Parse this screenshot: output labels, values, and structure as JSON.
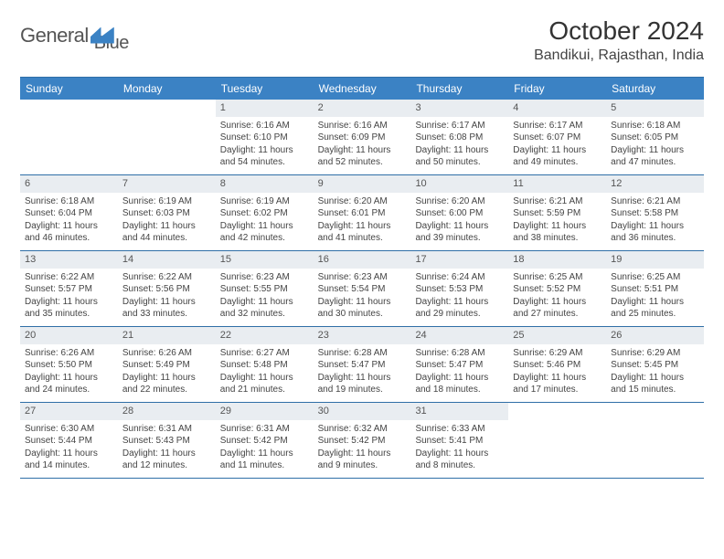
{
  "brand": {
    "word1": "General",
    "word2": "Blue"
  },
  "title": "October 2024",
  "location": "Bandikui, Rajasthan, India",
  "colors": {
    "header_bg": "#3b82c4",
    "header_text": "#ffffff",
    "daynum_bg": "#e9edf1",
    "border": "#2f6fa7",
    "page_bg": "#ffffff",
    "text": "#444444"
  },
  "layout": {
    "columns": 7,
    "rows": 5,
    "first_day_column_index": 2
  },
  "day_headers": [
    "Sunday",
    "Monday",
    "Tuesday",
    "Wednesday",
    "Thursday",
    "Friday",
    "Saturday"
  ],
  "days": [
    {
      "n": "1",
      "sunrise": "6:16 AM",
      "sunset": "6:10 PM",
      "daylight": "11 hours and 54 minutes."
    },
    {
      "n": "2",
      "sunrise": "6:16 AM",
      "sunset": "6:09 PM",
      "daylight": "11 hours and 52 minutes."
    },
    {
      "n": "3",
      "sunrise": "6:17 AM",
      "sunset": "6:08 PM",
      "daylight": "11 hours and 50 minutes."
    },
    {
      "n": "4",
      "sunrise": "6:17 AM",
      "sunset": "6:07 PM",
      "daylight": "11 hours and 49 minutes."
    },
    {
      "n": "5",
      "sunrise": "6:18 AM",
      "sunset": "6:05 PM",
      "daylight": "11 hours and 47 minutes."
    },
    {
      "n": "6",
      "sunrise": "6:18 AM",
      "sunset": "6:04 PM",
      "daylight": "11 hours and 46 minutes."
    },
    {
      "n": "7",
      "sunrise": "6:19 AM",
      "sunset": "6:03 PM",
      "daylight": "11 hours and 44 minutes."
    },
    {
      "n": "8",
      "sunrise": "6:19 AM",
      "sunset": "6:02 PM",
      "daylight": "11 hours and 42 minutes."
    },
    {
      "n": "9",
      "sunrise": "6:20 AM",
      "sunset": "6:01 PM",
      "daylight": "11 hours and 41 minutes."
    },
    {
      "n": "10",
      "sunrise": "6:20 AM",
      "sunset": "6:00 PM",
      "daylight": "11 hours and 39 minutes."
    },
    {
      "n": "11",
      "sunrise": "6:21 AM",
      "sunset": "5:59 PM",
      "daylight": "11 hours and 38 minutes."
    },
    {
      "n": "12",
      "sunrise": "6:21 AM",
      "sunset": "5:58 PM",
      "daylight": "11 hours and 36 minutes."
    },
    {
      "n": "13",
      "sunrise": "6:22 AM",
      "sunset": "5:57 PM",
      "daylight": "11 hours and 35 minutes."
    },
    {
      "n": "14",
      "sunrise": "6:22 AM",
      "sunset": "5:56 PM",
      "daylight": "11 hours and 33 minutes."
    },
    {
      "n": "15",
      "sunrise": "6:23 AM",
      "sunset": "5:55 PM",
      "daylight": "11 hours and 32 minutes."
    },
    {
      "n": "16",
      "sunrise": "6:23 AM",
      "sunset": "5:54 PM",
      "daylight": "11 hours and 30 minutes."
    },
    {
      "n": "17",
      "sunrise": "6:24 AM",
      "sunset": "5:53 PM",
      "daylight": "11 hours and 29 minutes."
    },
    {
      "n": "18",
      "sunrise": "6:25 AM",
      "sunset": "5:52 PM",
      "daylight": "11 hours and 27 minutes."
    },
    {
      "n": "19",
      "sunrise": "6:25 AM",
      "sunset": "5:51 PM",
      "daylight": "11 hours and 25 minutes."
    },
    {
      "n": "20",
      "sunrise": "6:26 AM",
      "sunset": "5:50 PM",
      "daylight": "11 hours and 24 minutes."
    },
    {
      "n": "21",
      "sunrise": "6:26 AM",
      "sunset": "5:49 PM",
      "daylight": "11 hours and 22 minutes."
    },
    {
      "n": "22",
      "sunrise": "6:27 AM",
      "sunset": "5:48 PM",
      "daylight": "11 hours and 21 minutes."
    },
    {
      "n": "23",
      "sunrise": "6:28 AM",
      "sunset": "5:47 PM",
      "daylight": "11 hours and 19 minutes."
    },
    {
      "n": "24",
      "sunrise": "6:28 AM",
      "sunset": "5:47 PM",
      "daylight": "11 hours and 18 minutes."
    },
    {
      "n": "25",
      "sunrise": "6:29 AM",
      "sunset": "5:46 PM",
      "daylight": "11 hours and 17 minutes."
    },
    {
      "n": "26",
      "sunrise": "6:29 AM",
      "sunset": "5:45 PM",
      "daylight": "11 hours and 15 minutes."
    },
    {
      "n": "27",
      "sunrise": "6:30 AM",
      "sunset": "5:44 PM",
      "daylight": "11 hours and 14 minutes."
    },
    {
      "n": "28",
      "sunrise": "6:31 AM",
      "sunset": "5:43 PM",
      "daylight": "11 hours and 12 minutes."
    },
    {
      "n": "29",
      "sunrise": "6:31 AM",
      "sunset": "5:42 PM",
      "daylight": "11 hours and 11 minutes."
    },
    {
      "n": "30",
      "sunrise": "6:32 AM",
      "sunset": "5:42 PM",
      "daylight": "11 hours and 9 minutes."
    },
    {
      "n": "31",
      "sunrise": "6:33 AM",
      "sunset": "5:41 PM",
      "daylight": "11 hours and 8 minutes."
    }
  ],
  "labels": {
    "sunrise": "Sunrise:",
    "sunset": "Sunset:",
    "daylight": "Daylight:"
  }
}
